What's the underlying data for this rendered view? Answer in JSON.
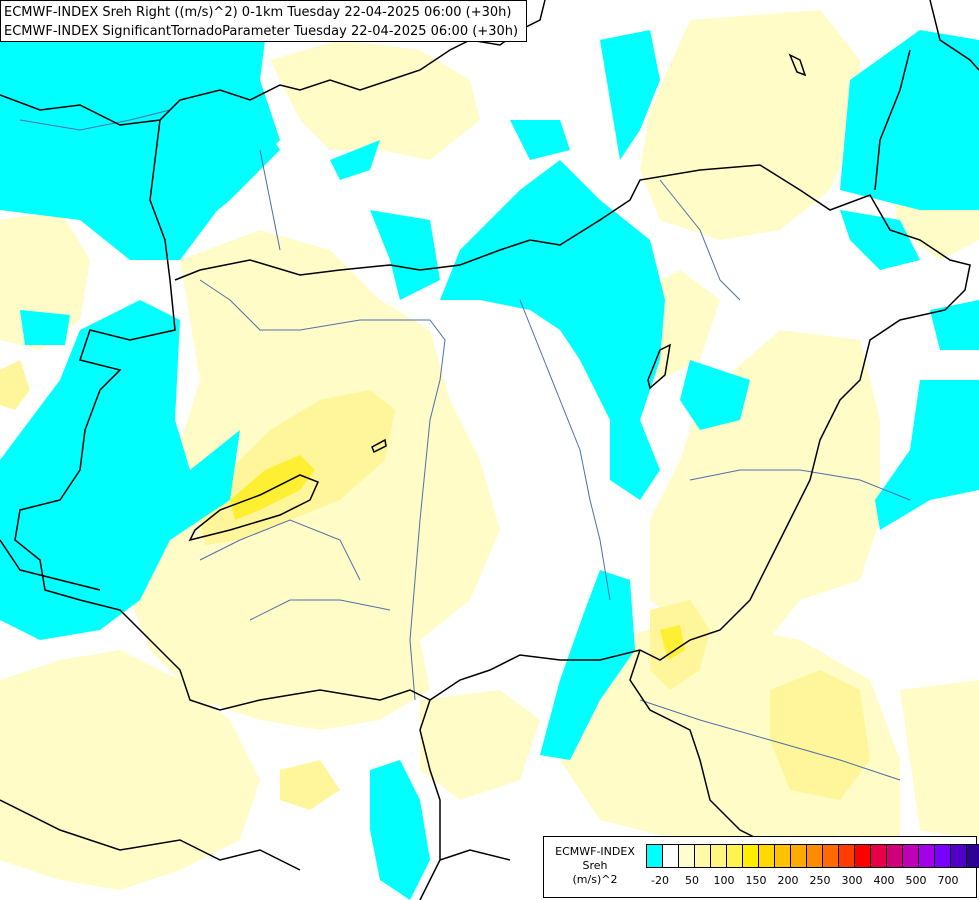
{
  "header": {
    "line1": "ECMWF-INDEX Sreh Right ((m/s)^2) 0-1km Tuesday 22-04-2025 06:00 (+30h)",
    "line2": "ECMWF-INDEX SignificantTornadoParameter Tuesday 22-04-2025 06:00 (+30h)"
  },
  "legend": {
    "title_line1": "ECMWF-INDEX",
    "title_line2": "Sreh",
    "title_line3": "(m/s)^2",
    "swatch_colors": [
      "#00ffff",
      "#ffffff",
      "#fffcd0",
      "#fff9a8",
      "#fff680",
      "#fff352",
      "#ffee00",
      "#ffd800",
      "#ffc100",
      "#ffaa00",
      "#ff8c00",
      "#ff6a00",
      "#ff3c00",
      "#ff0000",
      "#e80046",
      "#d10078",
      "#c000b4",
      "#a500e6",
      "#7a00ff",
      "#5000c8",
      "#2d0096",
      "#000070"
    ],
    "ticks": [
      "-20",
      "50",
      "100",
      "150",
      "200",
      "250",
      "300",
      "400",
      "500",
      "700"
    ]
  },
  "map": {
    "colors": {
      "cyan": "#00ffff",
      "pale_yellow": "#fffcc8",
      "light_yellow": "#fff59a",
      "yellow": "#ffef33",
      "border": "#000000",
      "river": "#4f6fa8"
    }
  }
}
